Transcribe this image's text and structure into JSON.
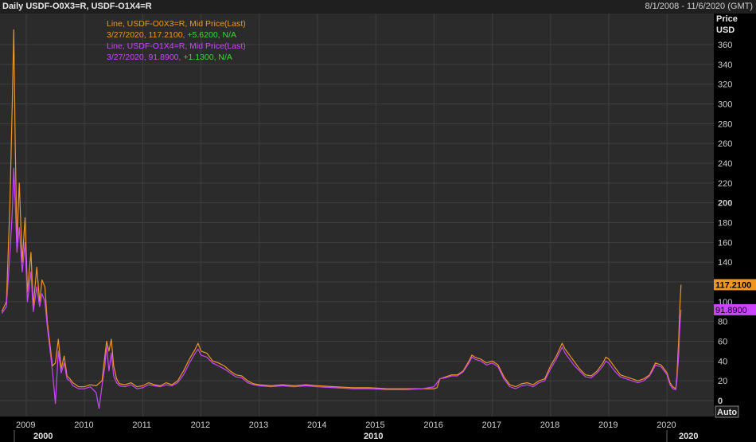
{
  "header": {
    "title": "Daily USDF-O0X3=R, USDF-O1X4=R",
    "date_range": "8/1/2008 - 11/6/2020 (GMT)"
  },
  "legend": [
    {
      "text": "Line, USDF-O0X3=R, Mid Price(Last)",
      "color": "#f0961e"
    },
    {
      "text_date_val": "3/27/2020, 117.2100, ",
      "change": "+5.6200",
      "na": ", N/A",
      "color": "#f0961e"
    },
    {
      "text": "Line, USDF-O1X4=R, Mid Price(Last)",
      "color": "#cc44ff"
    },
    {
      "text_date_val": "3/27/2020, 91.8900, ",
      "change": "+1.1300",
      "na": ", N/A",
      "color": "#cc44ff"
    }
  ],
  "y_axis_header": [
    "Price",
    "USD"
  ],
  "auto_button": "Auto",
  "colors": {
    "background": "#000000",
    "plot": "#2b2b2b",
    "grid": "#3f3f3f",
    "orange": "#f0961e",
    "purple": "#cc44ff",
    "change_green": "#33dd33"
  },
  "chart_data": {
    "type": "line",
    "x_axis": "date (decimal year)",
    "ylim": [
      -5,
      380
    ],
    "xlim": [
      2008.58,
      2020.85
    ],
    "y_ticks": [
      0,
      20,
      40,
      60,
      80,
      100,
      120,
      140,
      160,
      180,
      200,
      220,
      240,
      260,
      280,
      300,
      320,
      340,
      360
    ],
    "x_ticks": [
      "2009",
      "2010",
      "2011",
      "2012",
      "2013",
      "2014",
      "2015",
      "2016",
      "2017",
      "2018",
      "2019",
      "2020"
    ],
    "decade_labels": [
      "2000",
      "2010",
      "2020"
    ],
    "last_value_labels": [
      {
        "text": "117.2100",
        "value": 117.21,
        "series": "USDF-O0X3=R"
      },
      {
        "text": "91.8900",
        "value": 91.89,
        "series": "USDF-O1X4=R"
      }
    ],
    "series": [
      {
        "name": "USDF-O0X3=R",
        "color": "#f0961e",
        "points": [
          [
            2008.58,
            90
          ],
          [
            2008.66,
            100
          ],
          [
            2008.72,
            200
          ],
          [
            2008.76,
            300
          ],
          [
            2008.785,
            375
          ],
          [
            2008.81,
            260
          ],
          [
            2008.84,
            160
          ],
          [
            2008.88,
            220
          ],
          [
            2008.93,
            140
          ],
          [
            2008.98,
            185
          ],
          [
            2009.02,
            110
          ],
          [
            2009.08,
            150
          ],
          [
            2009.12,
            95
          ],
          [
            2009.18,
            135
          ],
          [
            2009.23,
            100
          ],
          [
            2009.27,
            122
          ],
          [
            2009.32,
            115
          ],
          [
            2009.36,
            80
          ],
          [
            2009.4,
            60
          ],
          [
            2009.45,
            35
          ],
          [
            2009.5,
            38
          ],
          [
            2009.55,
            62
          ],
          [
            2009.6,
            32
          ],
          [
            2009.65,
            45
          ],
          [
            2009.7,
            25
          ],
          [
            2009.75,
            22
          ],
          [
            2009.8,
            18
          ],
          [
            2009.9,
            14
          ],
          [
            2010.0,
            14
          ],
          [
            2010.1,
            16
          ],
          [
            2010.2,
            15
          ],
          [
            2010.3,
            20
          ],
          [
            2010.35,
            45
          ],
          [
            2010.38,
            60
          ],
          [
            2010.42,
            50
          ],
          [
            2010.46,
            62
          ],
          [
            2010.5,
            35
          ],
          [
            2010.55,
            22
          ],
          [
            2010.6,
            17
          ],
          [
            2010.7,
            16
          ],
          [
            2010.8,
            18
          ],
          [
            2010.9,
            14
          ],
          [
            2011.0,
            15
          ],
          [
            2011.1,
            18
          ],
          [
            2011.2,
            16
          ],
          [
            2011.3,
            15
          ],
          [
            2011.4,
            18
          ],
          [
            2011.5,
            16
          ],
          [
            2011.6,
            20
          ],
          [
            2011.7,
            30
          ],
          [
            2011.8,
            42
          ],
          [
            2011.9,
            52
          ],
          [
            2011.95,
            58
          ],
          [
            2012.0,
            50
          ],
          [
            2012.1,
            48
          ],
          [
            2012.2,
            40
          ],
          [
            2012.3,
            38
          ],
          [
            2012.4,
            35
          ],
          [
            2012.5,
            30
          ],
          [
            2012.6,
            26
          ],
          [
            2012.7,
            25
          ],
          [
            2012.8,
            20
          ],
          [
            2012.9,
            17
          ],
          [
            2013.0,
            16
          ],
          [
            2013.2,
            15
          ],
          [
            2013.4,
            16
          ],
          [
            2013.6,
            15
          ],
          [
            2013.8,
            16
          ],
          [
            2014.0,
            15
          ],
          [
            2014.3,
            14
          ],
          [
            2014.6,
            13
          ],
          [
            2014.9,
            13
          ],
          [
            2015.2,
            12
          ],
          [
            2015.5,
            12
          ],
          [
            2015.8,
            12
          ],
          [
            2016.0,
            12
          ],
          [
            2016.05,
            13
          ],
          [
            2016.1,
            22
          ],
          [
            2016.2,
            24
          ],
          [
            2016.3,
            26
          ],
          [
            2016.4,
            26
          ],
          [
            2016.5,
            30
          ],
          [
            2016.6,
            40
          ],
          [
            2016.65,
            46
          ],
          [
            2016.7,
            44
          ],
          [
            2016.8,
            42
          ],
          [
            2016.9,
            38
          ],
          [
            2017.0,
            40
          ],
          [
            2017.1,
            36
          ],
          [
            2017.2,
            24
          ],
          [
            2017.3,
            16
          ],
          [
            2017.4,
            14
          ],
          [
            2017.5,
            17
          ],
          [
            2017.6,
            18
          ],
          [
            2017.7,
            16
          ],
          [
            2017.8,
            20
          ],
          [
            2017.9,
            22
          ],
          [
            2018.0,
            35
          ],
          [
            2018.1,
            45
          ],
          [
            2018.2,
            58
          ],
          [
            2018.25,
            52
          ],
          [
            2018.3,
            48
          ],
          [
            2018.4,
            40
          ],
          [
            2018.5,
            32
          ],
          [
            2018.6,
            26
          ],
          [
            2018.7,
            25
          ],
          [
            2018.8,
            30
          ],
          [
            2018.9,
            38
          ],
          [
            2018.95,
            44
          ],
          [
            2019.0,
            42
          ],
          [
            2019.1,
            34
          ],
          [
            2019.2,
            26
          ],
          [
            2019.3,
            24
          ],
          [
            2019.4,
            22
          ],
          [
            2019.5,
            20
          ],
          [
            2019.6,
            22
          ],
          [
            2019.7,
            26
          ],
          [
            2019.75,
            32
          ],
          [
            2019.8,
            38
          ],
          [
            2019.9,
            36
          ],
          [
            2020.0,
            28
          ],
          [
            2020.05,
            18
          ],
          [
            2020.1,
            14
          ],
          [
            2020.15,
            12
          ],
          [
            2020.17,
            25
          ],
          [
            2020.2,
            60
          ],
          [
            2020.22,
            95
          ],
          [
            2020.24,
            117.21
          ]
        ]
      },
      {
        "name": "USDF-O1X4=R",
        "color": "#cc44ff",
        "points": [
          [
            2008.58,
            88
          ],
          [
            2008.66,
            95
          ],
          [
            2008.72,
            150
          ],
          [
            2008.76,
            190
          ],
          [
            2008.785,
            235
          ],
          [
            2008.81,
            200
          ],
          [
            2008.84,
            150
          ],
          [
            2008.88,
            175
          ],
          [
            2008.93,
            130
          ],
          [
            2008.98,
            160
          ],
          [
            2009.02,
            100
          ],
          [
            2009.08,
            130
          ],
          [
            2009.12,
            90
          ],
          [
            2009.18,
            115
          ],
          [
            2009.23,
            95
          ],
          [
            2009.27,
            108
          ],
          [
            2009.32,
            100
          ],
          [
            2009.36,
            75
          ],
          [
            2009.4,
            55
          ],
          [
            2009.45,
            30
          ],
          [
            2009.5,
            -3
          ],
          [
            2009.55,
            50
          ],
          [
            2009.6,
            28
          ],
          [
            2009.65,
            38
          ],
          [
            2009.7,
            22
          ],
          [
            2009.75,
            20
          ],
          [
            2009.8,
            15
          ],
          [
            2009.9,
            12
          ],
          [
            2010.0,
            12
          ],
          [
            2010.1,
            14
          ],
          [
            2010.2,
            8
          ],
          [
            2010.25,
            -8
          ],
          [
            2010.3,
            15
          ],
          [
            2010.35,
            35
          ],
          [
            2010.38,
            55
          ],
          [
            2010.42,
            30
          ],
          [
            2010.46,
            48
          ],
          [
            2010.5,
            25
          ],
          [
            2010.55,
            18
          ],
          [
            2010.6,
            15
          ],
          [
            2010.7,
            14
          ],
          [
            2010.8,
            16
          ],
          [
            2010.9,
            12
          ],
          [
            2011.0,
            13
          ],
          [
            2011.1,
            16
          ],
          [
            2011.2,
            15
          ],
          [
            2011.3,
            14
          ],
          [
            2011.4,
            16
          ],
          [
            2011.5,
            15
          ],
          [
            2011.6,
            18
          ],
          [
            2011.7,
            26
          ],
          [
            2011.8,
            38
          ],
          [
            2011.9,
            48
          ],
          [
            2011.95,
            52
          ],
          [
            2012.0,
            46
          ],
          [
            2012.1,
            44
          ],
          [
            2012.2,
            38
          ],
          [
            2012.3,
            35
          ],
          [
            2012.4,
            32
          ],
          [
            2012.5,
            28
          ],
          [
            2012.6,
            24
          ],
          [
            2012.7,
            23
          ],
          [
            2012.8,
            18
          ],
          [
            2012.9,
            16
          ],
          [
            2013.0,
            15
          ],
          [
            2013.2,
            14
          ],
          [
            2013.4,
            15
          ],
          [
            2013.6,
            14
          ],
          [
            2013.8,
            15
          ],
          [
            2014.0,
            14
          ],
          [
            2014.3,
            13
          ],
          [
            2014.6,
            12
          ],
          [
            2014.9,
            12
          ],
          [
            2015.2,
            11
          ],
          [
            2015.5,
            11
          ],
          [
            2015.8,
            12
          ],
          [
            2016.0,
            14
          ],
          [
            2016.05,
            18
          ],
          [
            2016.1,
            22
          ],
          [
            2016.2,
            23
          ],
          [
            2016.3,
            25
          ],
          [
            2016.4,
            25
          ],
          [
            2016.5,
            29
          ],
          [
            2016.6,
            38
          ],
          [
            2016.65,
            44
          ],
          [
            2016.7,
            42
          ],
          [
            2016.8,
            40
          ],
          [
            2016.9,
            36
          ],
          [
            2017.0,
            38
          ],
          [
            2017.1,
            34
          ],
          [
            2017.2,
            22
          ],
          [
            2017.3,
            14
          ],
          [
            2017.4,
            12
          ],
          [
            2017.5,
            15
          ],
          [
            2017.6,
            16
          ],
          [
            2017.7,
            14
          ],
          [
            2017.8,
            18
          ],
          [
            2017.9,
            20
          ],
          [
            2018.0,
            32
          ],
          [
            2018.1,
            42
          ],
          [
            2018.2,
            54
          ],
          [
            2018.25,
            48
          ],
          [
            2018.3,
            44
          ],
          [
            2018.4,
            36
          ],
          [
            2018.5,
            30
          ],
          [
            2018.6,
            24
          ],
          [
            2018.7,
            23
          ],
          [
            2018.8,
            28
          ],
          [
            2018.9,
            35
          ],
          [
            2018.95,
            40
          ],
          [
            2019.0,
            38
          ],
          [
            2019.1,
            30
          ],
          [
            2019.2,
            24
          ],
          [
            2019.3,
            22
          ],
          [
            2019.4,
            20
          ],
          [
            2019.5,
            18
          ],
          [
            2019.6,
            20
          ],
          [
            2019.7,
            25
          ],
          [
            2019.75,
            30
          ],
          [
            2019.8,
            36
          ],
          [
            2019.9,
            34
          ],
          [
            2020.0,
            26
          ],
          [
            2020.05,
            16
          ],
          [
            2020.1,
            12
          ],
          [
            2020.15,
            11
          ],
          [
            2020.17,
            20
          ],
          [
            2020.2,
            45
          ],
          [
            2020.22,
            75
          ],
          [
            2020.24,
            91.89
          ]
        ]
      }
    ]
  }
}
